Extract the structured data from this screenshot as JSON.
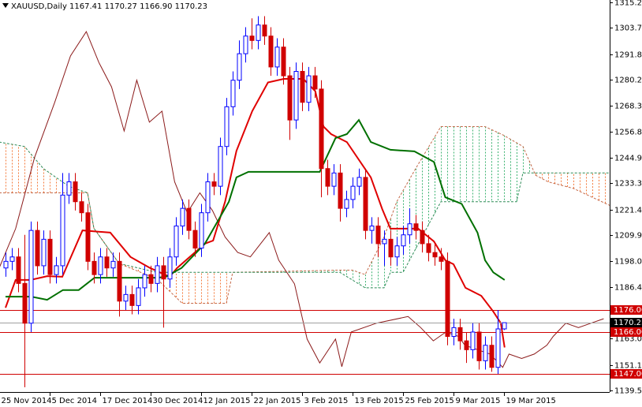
{
  "chart_data": {
    "type": "candlestick",
    "title": "XAUUSD,Daily 1167.41 1170.27 1166.90 1170.23",
    "xlim": [
      -0.875,
      95.75
    ],
    "ylim": [
      1138.84,
      1316.32
    ],
    "xticks": [
      {
        "value": -1,
        "label": "25 Nov 2014"
      },
      {
        "value": 7,
        "label": "5 Dec 2014"
      },
      {
        "value": 15,
        "label": "17 Dec 2014"
      },
      {
        "value": 23,
        "label": "30 Dec 2014"
      },
      {
        "value": 31,
        "label": "12 Jan 2015"
      },
      {
        "value": 39,
        "label": "22 Jan 2015"
      },
      {
        "value": 47,
        "label": "3 Feb 2015"
      },
      {
        "value": 55,
        "label": "13 Feb 2015"
      },
      {
        "value": 63,
        "label": "25 Feb 2015"
      },
      {
        "value": 71,
        "label": "9 Mar 2015"
      },
      {
        "value": 79,
        "label": "19 Mar 2015"
      }
    ],
    "yticks": [
      1315.25,
      {
        "value": 1303.7,
        "label": "1303.70"
      },
      {
        "value": 1291.8,
        "label": "1291.80"
      },
      1280.25,
      1268.35,
      {
        "value": 1256.8,
        "label": "1256.80"
      },
      {
        "value": 1244.9,
        "label": "1244.90"
      },
      1233.35,
      1221.45,
      {
        "value": 1209.9,
        "label": "1209.90"
      },
      {
        "value": 1198,
        "label": "1198.00"
      },
      1186.45,
      {
        "value": 1163,
        "label": "1163.00"
      },
      {
        "value": 1151.1,
        "label": "1151.10"
      },
      1139.55
    ],
    "up_color": "#0000ff",
    "down_color": "#d00000",
    "x": [
      0,
      1,
      2,
      3,
      4,
      5,
      6,
      7,
      8,
      9,
      10,
      11,
      12,
      13,
      14,
      15,
      16,
      17,
      18,
      19,
      20,
      21,
      22,
      23,
      24,
      25,
      26,
      27,
      28,
      29,
      30,
      31,
      32,
      33,
      34,
      35,
      36,
      37,
      38,
      39,
      40,
      41,
      42,
      43,
      44,
      45,
      46,
      47,
      48,
      49,
      50,
      51,
      52,
      53,
      54,
      55,
      56,
      57,
      58,
      59,
      60,
      61,
      62,
      63,
      64,
      65,
      66,
      67,
      68,
      69,
      70,
      71,
      72,
      73,
      74,
      75,
      76,
      77,
      78,
      79
    ],
    "open": [
      1195,
      1198,
      1200,
      1188,
      1170,
      1212,
      1196,
      1208,
      1192,
      1196,
      1228,
      1234,
      1225,
      1220,
      1198,
      1192,
      1200,
      1195,
      1198,
      1180,
      1183,
      1178,
      1186,
      1192,
      1188,
      1196,
      1190,
      1200,
      1214,
      1222,
      1212,
      1204,
      1220,
      1234,
      1232,
      1250,
      1268,
      1280,
      1292,
      1300,
      1298,
      1305,
      1300,
      1286,
      1295,
      1282,
      1262,
      1284,
      1270,
      1282,
      1276,
      1240,
      1232,
      1238,
      1222,
      1226,
      1232,
      1236,
      1212,
      1214,
      1206,
      1208,
      1200,
      1205,
      1210,
      1215,
      1212,
      1206,
      1202,
      1200,
      1198,
      1164,
      1168,
      1162,
      1158,
      1166,
      1153,
      1160,
      1150,
      1167.41
    ],
    "high": [
      1202,
      1204,
      1204,
      1210,
      1216,
      1216,
      1212,
      1212,
      1200,
      1238,
      1238,
      1238,
      1229,
      1224,
      1202,
      1204,
      1204,
      1202,
      1202,
      1187,
      1187,
      1190,
      1196,
      1196,
      1200,
      1200,
      1204,
      1218,
      1226,
      1226,
      1216,
      1224,
      1238,
      1238,
      1254,
      1272,
      1284,
      1298,
      1304,
      1308,
      1309,
      1309,
      1304,
      1299,
      1299,
      1286,
      1288,
      1288,
      1286,
      1286,
      1280,
      1244,
      1242,
      1242,
      1230,
      1236,
      1240,
      1240,
      1218,
      1218,
      1212,
      1212,
      1209,
      1214,
      1222,
      1219,
      1216,
      1210,
      1206,
      1204,
      1202,
      1172,
      1172,
      1166,
      1170,
      1170,
      1164,
      1164,
      1176,
      1170.27
    ],
    "low": [
      1191,
      1194,
      1184,
      1141,
      1166,
      1192,
      1192,
      1188,
      1188,
      1192,
      1224,
      1221,
      1216,
      1194,
      1188,
      1188,
      1191,
      1191,
      1173,
      1176,
      1174,
      1174,
      1182,
      1184,
      1184,
      1168,
      1186,
      1196,
      1210,
      1208,
      1200,
      1200,
      1216,
      1228,
      1228,
      1246,
      1264,
      1276,
      1288,
      1294,
      1294,
      1296,
      1282,
      1282,
      1278,
      1253,
      1258,
      1266,
      1266,
      1272,
      1227,
      1228,
      1228,
      1216,
      1218,
      1222,
      1228,
      1208,
      1206,
      1200,
      1196,
      1196,
      1196,
      1201,
      1206,
      1208,
      1202,
      1198,
      1196,
      1194,
      1160,
      1160,
      1158,
      1152,
      1154,
      1149,
      1149,
      1148,
      1147,
      1166.9
    ],
    "close": [
      1198,
      1200,
      1188,
      1170,
      1212,
      1196,
      1208,
      1192,
      1196,
      1228,
      1234,
      1225,
      1220,
      1198,
      1192,
      1200,
      1195,
      1198,
      1180,
      1183,
      1178,
      1186,
      1192,
      1188,
      1196,
      1190,
      1200,
      1214,
      1222,
      1212,
      1204,
      1220,
      1234,
      1232,
      1250,
      1268,
      1280,
      1292,
      1300,
      1298,
      1305,
      1300,
      1286,
      1295,
      1282,
      1262,
      1284,
      1270,
      1282,
      1276,
      1240,
      1232,
      1238,
      1222,
      1226,
      1232,
      1236,
      1212,
      1214,
      1206,
      1208,
      1200,
      1205,
      1210,
      1215,
      1212,
      1206,
      1202,
      1200,
      1198,
      1164,
      1168,
      1162,
      1158,
      1166,
      1153,
      1160,
      1150,
      1167.41,
      1170.23
    ],
    "cloud": {
      "bull_color": "#3cb371",
      "bear_color": "#f4793a",
      "span_a": {
        "color": "#c46a4a",
        "x": [
          -1,
          13,
          14,
          18,
          24,
          28,
          35,
          36,
          53,
          55,
          57,
          60,
          62,
          65,
          69,
          76,
          79,
          82,
          84,
          86,
          90,
          96
        ],
        "values": [
          1229,
          1229,
          1213,
          1197,
          1190,
          1179,
          1179,
          1193,
          1194,
          1194,
          1192,
          1209,
          1225,
          1240,
          1259,
          1259,
          1255,
          1250,
          1237,
          1234,
          1231,
          1223
        ]
      },
      "span_b": {
        "color": "#2e8b57",
        "x": [
          -1,
          3,
          6,
          10,
          13,
          14,
          18,
          24,
          35,
          53,
          57,
          60,
          61,
          63,
          69,
          81,
          82,
          96
        ],
        "values": [
          1252,
          1250,
          1240,
          1232,
          1229,
          1213,
          1197,
          1193,
          1193,
          1193,
          1186,
          1186,
          1193,
          1193,
          1225,
          1225,
          1238,
          1238
        ]
      }
    },
    "lines": [
      {
        "color": "#8b1a1a",
        "width": 1,
        "x": [
          -1,
          1.6,
          4.6,
          7.8,
          10.3,
          12.8,
          14.8,
          16.8,
          18.8,
          20.8,
          22.8,
          24.8,
          26.8,
          28.8,
          30.8,
          32.8,
          34.8,
          36.8,
          38.8,
          41.8,
          43.3,
          45.8,
          47.8,
          49.8,
          52.3,
          53.3,
          54.8,
          58.8,
          63.8,
          65.8,
          67.8,
          69.8,
          71.8,
          72.8,
          74.8,
          76.8,
          78.8,
          79.8,
          81.8,
          83.8,
          85.8,
          86.8,
          88.8,
          90.8,
          92.8,
          94.8
        ],
        "values": [
          1195,
          1212.8,
          1245,
          1270,
          1291,
          1302,
          1288,
          1277,
          1257,
          1280,
          1261,
          1266,
          1234,
          1220,
          1229,
          1221,
          1209,
          1202,
          1200,
          1211,
          1198.5,
          1187.8,
          1162.8,
          1152,
          1162.8,
          1150.3,
          1166,
          1170,
          1173,
          1168,
          1162,
          1166,
          1164,
          1160,
          1158,
          1156,
          1150,
          1156,
          1154,
          1156,
          1160,
          1164,
          1170,
          1168,
          1170,
          1172
        ]
      },
      {
        "color": "#e00000",
        "width": 2,
        "x": [
          0,
          1.6,
          4,
          6.6,
          9,
          12.2,
          16.6,
          19.8,
          22.9,
          26,
          27.2,
          31.6,
          32.9,
          34.8,
          36.6,
          39.1,
          41.6,
          44.1,
          47.2,
          49.1,
          50.4,
          51.6,
          54.1,
          57.9,
          59.7,
          61,
          65.4,
          67.9,
          69.7,
          71,
          72.9,
          75.4,
          77.3,
          78.5,
          79.1
        ],
        "values": [
          1177,
          1189.6,
          1189.6,
          1191.3,
          1191,
          1212,
          1211,
          1200,
          1195,
          1191,
          1195,
          1206,
          1207.4,
          1225,
          1248,
          1266,
          1279,
          1280.6,
          1280.6,
          1275,
          1259,
          1255.6,
          1252,
          1236,
          1221.7,
          1212.8,
          1212.8,
          1207,
          1198.5,
          1196.7,
          1186,
          1182.4,
          1175.3,
          1170,
          1159
        ]
      },
      {
        "color": "#007000",
        "width": 2,
        "x": [
          0,
          1.6,
          4.1,
          6.6,
          9.1,
          11.6,
          14.1,
          24.1,
          25.4,
          27.9,
          31.6,
          35.4,
          36.6,
          38.5,
          49.8,
          52.3,
          54.1,
          56,
          57.9,
          61,
          64.8,
          67.9,
          69.7,
          72.3,
          74.8,
          76,
          77.3,
          79.1
        ],
        "values": [
          1182,
          1182,
          1182,
          1180.6,
          1185,
          1185,
          1190.6,
          1190.6,
          1191,
          1195,
          1206,
          1225,
          1236,
          1238.5,
          1238.5,
          1253.8,
          1255.6,
          1262,
          1252,
          1248.5,
          1247.8,
          1243,
          1227,
          1224,
          1211,
          1198.5,
          1193,
          1189.6
        ]
      }
    ],
    "levels": [
      {
        "value": 1176,
        "label": "1176.00"
      },
      {
        "value": 1166,
        "label": "1166.00"
      },
      {
        "value": 1147,
        "label": "1147.00"
      }
    ],
    "level_color": "#d00000",
    "price_line": {
      "value": 1170.23,
      "label": "1170.23"
    }
  }
}
